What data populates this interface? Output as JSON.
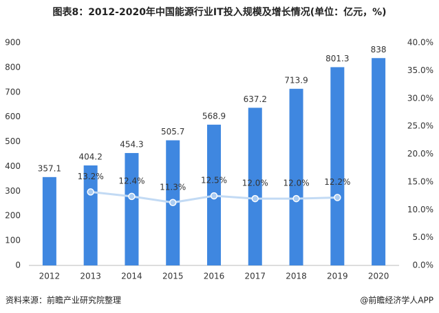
{
  "chart_data": {
    "type": "bar",
    "title": "图表8：2012-2020年中国能源行业IT投入规模及增长情况(单位：亿元，%)",
    "source": "资料来源：前瞻产业研究院整理",
    "credit": "@前瞻经济学人APP",
    "categories": [
      "2012",
      "2013",
      "2014",
      "2015",
      "2016",
      "2017",
      "2018",
      "2019",
      "2020"
    ],
    "series": [
      {
        "type": "bar",
        "color": "#3f87e0",
        "values": [
          357.1,
          404.2,
          454.3,
          505.7,
          568.9,
          637.2,
          713.9,
          801.3,
          838
        ]
      },
      {
        "type": "line",
        "axis": "y2",
        "color": "#c2daf4",
        "values": [
          null,
          13.2,
          12.4,
          11.3,
          12.5,
          12.0,
          12.0,
          12.2,
          null
        ],
        "value_labels": [
          null,
          "13.2%",
          "12.4%",
          "11.3%",
          "12.5%",
          "12.0%",
          "12.0%",
          "12.2%",
          null
        ]
      }
    ],
    "ylim": [
      0,
      900
    ],
    "yticks": [
      0,
      100,
      200,
      300,
      400,
      500,
      600,
      700,
      800,
      900
    ],
    "y2lim": [
      0,
      40
    ],
    "y2ticks": [
      {
        "value": 0,
        "label": "0.0%"
      },
      {
        "value": 5,
        "label": "5.0%"
      },
      {
        "value": 10,
        "label": "10.0%"
      },
      {
        "value": 15,
        "label": "15.0%"
      },
      {
        "value": 20,
        "label": "20.0%"
      },
      {
        "value": 25,
        "label": "25.0%"
      },
      {
        "value": 30,
        "label": "30.0%"
      },
      {
        "value": 35,
        "label": "35.0%"
      },
      {
        "value": 40,
        "label": "40.0%"
      }
    ]
  }
}
